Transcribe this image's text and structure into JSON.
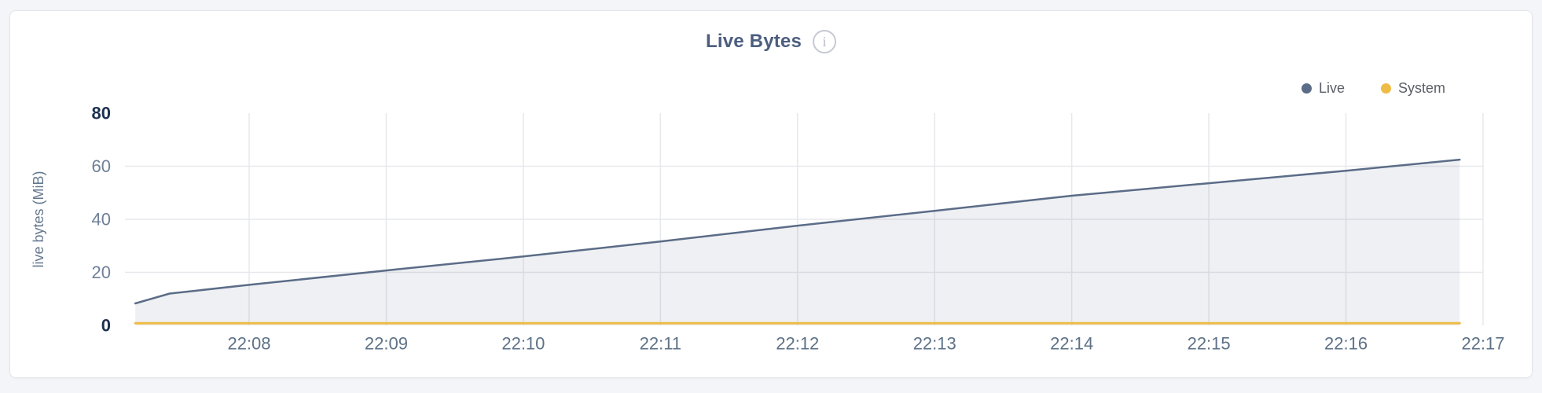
{
  "card": {
    "title": "Live Bytes",
    "info_icon_glyph": "i"
  },
  "colors": {
    "live": "#5b6c87",
    "system": "#eebb45",
    "area_fill": "rgba(91,108,135,0.10)",
    "grid": "#e7e8ec",
    "y_tick": "#6e8097",
    "y_tick_bold": "#1c3150",
    "x_tick": "#5e7288",
    "axis_label": "#64778e",
    "title": "#4c5e7f",
    "page_bg": "#f4f5f9",
    "card_bg": "#ffffff"
  },
  "chart_data": {
    "type": "area",
    "title": "Live Bytes",
    "xlabel": "",
    "ylabel": "live bytes (MiB)",
    "ylim": [
      0,
      80
    ],
    "grid": true,
    "legend_position": "top-right",
    "unit": "MiB",
    "y_ticks": [
      {
        "value": 0,
        "label": "0",
        "bold": true
      },
      {
        "value": 20,
        "label": "20",
        "bold": false
      },
      {
        "value": 40,
        "label": "40",
        "bold": false
      },
      {
        "value": 60,
        "label": "60",
        "bold": false
      },
      {
        "value": 80,
        "label": "80",
        "bold": true
      }
    ],
    "x_ticks": [
      {
        "t": 8,
        "label": "22:08"
      },
      {
        "t": 9,
        "label": "22:09"
      },
      {
        "t": 10,
        "label": "22:10"
      },
      {
        "t": 11,
        "label": "22:11"
      },
      {
        "t": 12,
        "label": "22:12"
      },
      {
        "t": 13,
        "label": "22:13"
      },
      {
        "t": 14,
        "label": "22:14"
      },
      {
        "t": 15,
        "label": "22:15"
      },
      {
        "t": 16,
        "label": "22:16"
      },
      {
        "t": 17,
        "label": "22:17"
      }
    ],
    "x_unit_note": "t = minutes after 22:00",
    "series": [
      {
        "name": "Live",
        "color": "#5b6c87",
        "fill": "rgba(91,108,135,0.10)",
        "points": [
          [
            7.17,
            8.3
          ],
          [
            7.42,
            12.0
          ],
          [
            8,
            15.3
          ],
          [
            9,
            20.7
          ],
          [
            10,
            26.0
          ],
          [
            11,
            31.6
          ],
          [
            12,
            37.6
          ],
          [
            13,
            43.2
          ],
          [
            14,
            48.9
          ],
          [
            15,
            53.6
          ],
          [
            16,
            58.3
          ],
          [
            16.83,
            62.5
          ]
        ]
      },
      {
        "name": "System",
        "color": "#eebb45",
        "fill": null,
        "points": [
          [
            7.17,
            0.8
          ],
          [
            16.83,
            0.8
          ]
        ]
      }
    ]
  }
}
